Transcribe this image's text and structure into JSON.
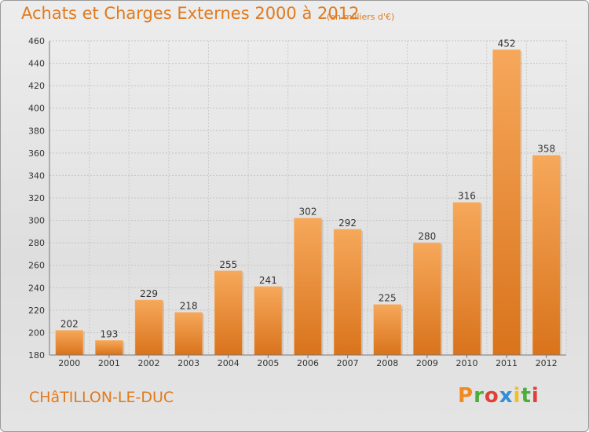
{
  "header": {
    "title": "Achats et Charges Externes 2000 à 2012",
    "unit": "(en milliers d'€)"
  },
  "footer": {
    "commune": "CHâTILLON-LE-DUC",
    "logo": "Proxiti"
  },
  "colors": {
    "accent": "#e07a1e",
    "bar_top": "#f6a85a",
    "bar_bottom": "#d9731c",
    "logo_letters": [
      "#f08a1e",
      "#4cae3a",
      "#e0403a",
      "#2f8fd8",
      "#f0c020",
      "#4cae3a",
      "#e0403a"
    ]
  },
  "chart_data": {
    "type": "bar",
    "categories": [
      "2000",
      "2001",
      "2002",
      "2003",
      "2004",
      "2005",
      "2006",
      "2007",
      "2008",
      "2009",
      "2010",
      "2011",
      "2012"
    ],
    "values": [
      202,
      193,
      229,
      218,
      255,
      241,
      302,
      292,
      225,
      280,
      316,
      452,
      358
    ],
    "title": "Achats et Charges Externes 2000 à 2012",
    "xlabel": "",
    "ylabel": "",
    "ylim": [
      180,
      460
    ],
    "yticks": [
      180,
      200,
      220,
      240,
      260,
      280,
      300,
      320,
      340,
      360,
      380,
      400,
      420,
      440,
      460
    ],
    "grid": true
  }
}
